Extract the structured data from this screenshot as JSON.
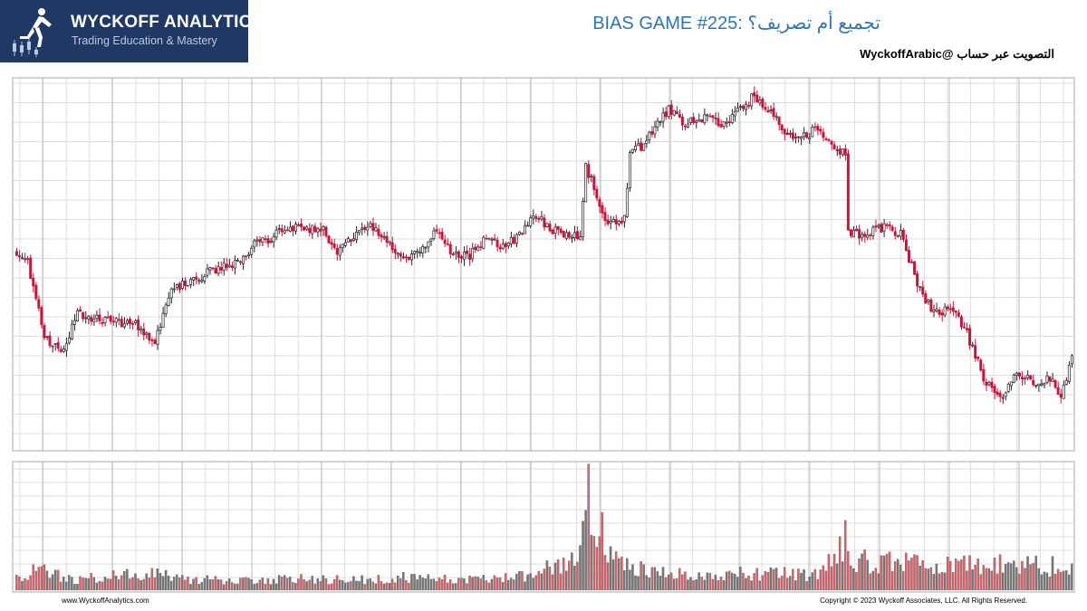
{
  "header": {
    "logo_title": "WYCKOFF ANALYTICS",
    "logo_subtitle": "Trading Education & Mastery",
    "game_title": "BIAS GAME #225: تجميع أم تصريف؟",
    "vote_text": "التصويت عبر حساب @WyckoffArabic",
    "brand_color": "#1f3864",
    "title_color": "#2e75b6"
  },
  "footer": {
    "website": "www.WyckoffAnalytics.com",
    "copyright": "Copyright © 2023 Wyckoff Associates, LLC. All Rights Reserved."
  },
  "chart_data": {
    "type": "candlestick",
    "title": "",
    "xlabel": "",
    "ylabel": "",
    "grid": true,
    "legend": "none",
    "colors": {
      "up": "#222222",
      "down": "#d0103a",
      "volume_up": "#777777",
      "volume_down": "#e0606a",
      "grid": "#dddddd",
      "grid_major": "#bbbbbb"
    },
    "price_ylim": [
      0,
      100
    ],
    "volume_ylim": [
      0,
      100
    ],
    "close_anchors": [
      [
        0,
        53
      ],
      [
        4,
        50
      ],
      [
        10,
        30
      ],
      [
        16,
        26
      ],
      [
        22,
        36
      ],
      [
        30,
        35
      ],
      [
        38,
        34
      ],
      [
        44,
        33
      ],
      [
        50,
        28
      ],
      [
        56,
        44
      ],
      [
        62,
        44
      ],
      [
        68,
        47
      ],
      [
        74,
        49
      ],
      [
        80,
        50
      ],
      [
        86,
        55
      ],
      [
        92,
        57
      ],
      [
        98,
        60
      ],
      [
        104,
        59
      ],
      [
        110,
        60
      ],
      [
        116,
        53
      ],
      [
        122,
        58
      ],
      [
        128,
        60
      ],
      [
        134,
        56
      ],
      [
        140,
        52
      ],
      [
        146,
        53
      ],
      [
        152,
        59
      ],
      [
        158,
        52
      ],
      [
        164,
        52
      ],
      [
        170,
        57
      ],
      [
        176,
        54
      ],
      [
        182,
        58
      ],
      [
        188,
        63
      ],
      [
        194,
        59
      ],
      [
        200,
        58
      ],
      [
        204,
        57
      ],
      [
        206,
        76
      ],
      [
        210,
        69
      ],
      [
        214,
        60
      ],
      [
        220,
        62
      ],
      [
        222,
        81
      ],
      [
        226,
        82
      ],
      [
        230,
        86
      ],
      [
        236,
        92
      ],
      [
        242,
        88
      ],
      [
        250,
        90
      ],
      [
        256,
        88
      ],
      [
        262,
        92
      ],
      [
        266,
        95
      ],
      [
        272,
        92
      ],
      [
        278,
        86
      ],
      [
        284,
        84
      ],
      [
        290,
        87
      ],
      [
        296,
        81
      ],
      [
        300,
        80
      ],
      [
        301,
        58
      ],
      [
        306,
        58
      ],
      [
        314,
        60
      ],
      [
        320,
        58
      ],
      [
        326,
        45
      ],
      [
        332,
        36
      ],
      [
        338,
        38
      ],
      [
        344,
        31
      ],
      [
        350,
        19
      ],
      [
        356,
        13
      ],
      [
        362,
        20
      ],
      [
        368,
        18
      ],
      [
        374,
        19
      ],
      [
        378,
        13
      ],
      [
        382,
        25
      ]
    ],
    "volume_anchors": [
      [
        0,
        10
      ],
      [
        6,
        15
      ],
      [
        12,
        14
      ],
      [
        20,
        8
      ],
      [
        30,
        10
      ],
      [
        40,
        12
      ],
      [
        50,
        15
      ],
      [
        60,
        9
      ],
      [
        70,
        8
      ],
      [
        80,
        7
      ],
      [
        90,
        8
      ],
      [
        100,
        9
      ],
      [
        110,
        8
      ],
      [
        120,
        9
      ],
      [
        130,
        8
      ],
      [
        140,
        10
      ],
      [
        150,
        9
      ],
      [
        160,
        8
      ],
      [
        170,
        9
      ],
      [
        180,
        10
      ],
      [
        188,
        14
      ],
      [
        194,
        20
      ],
      [
        200,
        18
      ],
      [
        204,
        38
      ],
      [
        206,
        85
      ],
      [
        210,
        58
      ],
      [
        214,
        30
      ],
      [
        218,
        22
      ],
      [
        224,
        20
      ],
      [
        230,
        15
      ],
      [
        240,
        12
      ],
      [
        250,
        11
      ],
      [
        260,
        14
      ],
      [
        270,
        12
      ],
      [
        280,
        13
      ],
      [
        290,
        12
      ],
      [
        300,
        42
      ],
      [
        304,
        25
      ],
      [
        310,
        20
      ],
      [
        320,
        22
      ],
      [
        330,
        18
      ],
      [
        340,
        20
      ],
      [
        350,
        22
      ],
      [
        360,
        20
      ],
      [
        370,
        21
      ],
      [
        382,
        15
      ]
    ]
  }
}
